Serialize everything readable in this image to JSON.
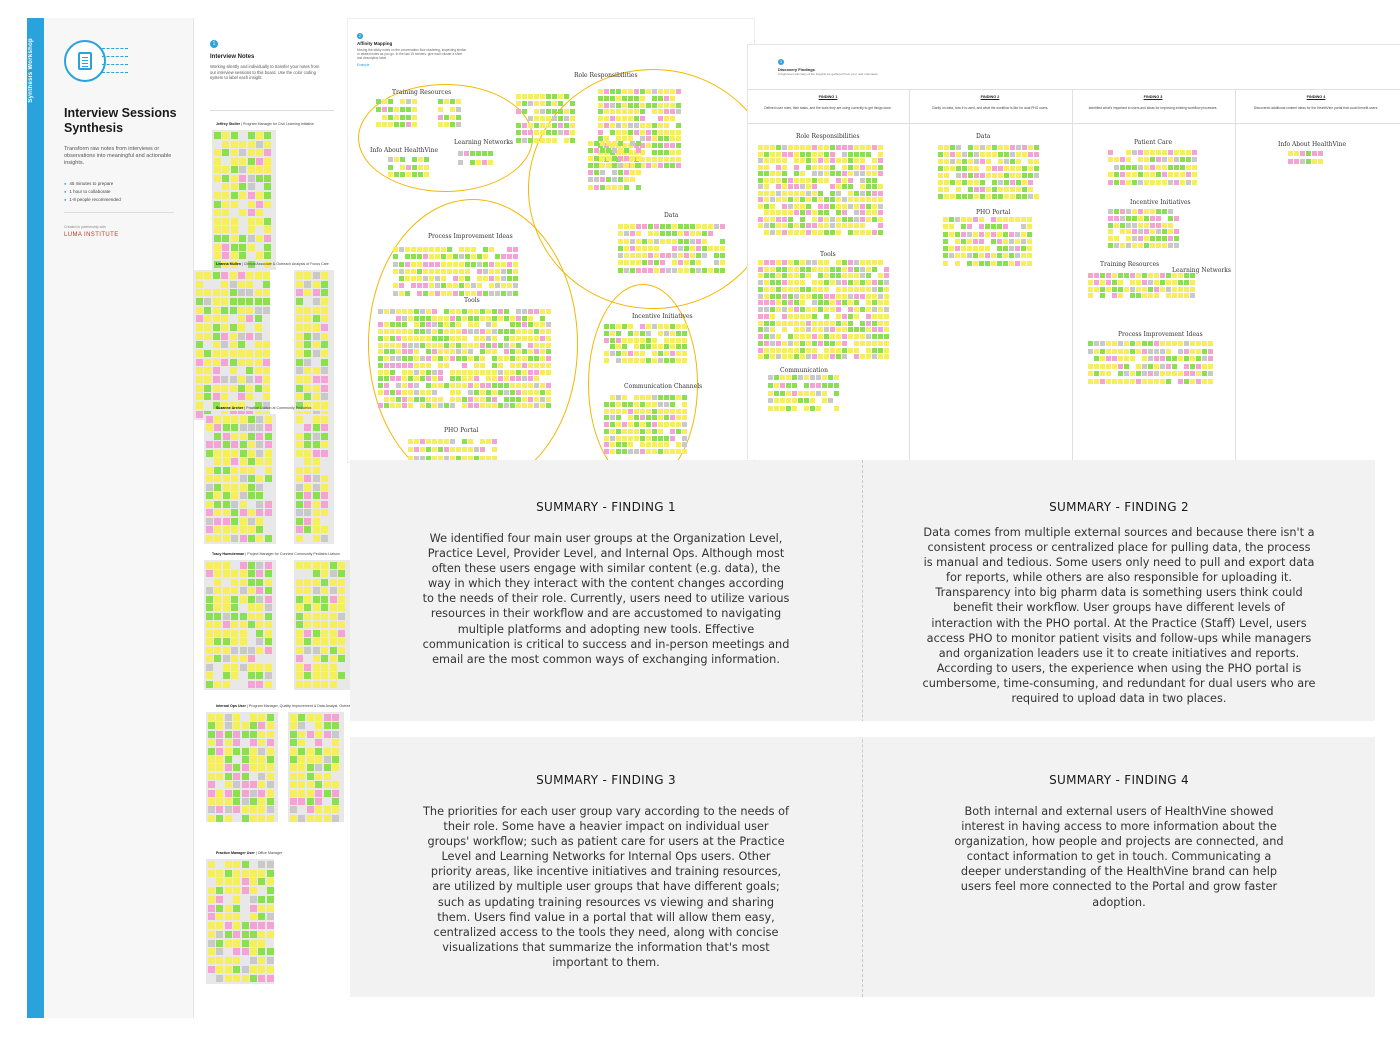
{
  "template": {
    "side_tab": "Synthesis Workshop",
    "title": "Interview Sessions Synthesis",
    "description": "Transform raw notes from interviews or observations into meaningful and actionable insights.",
    "meta": [
      "45 minutes to prepare",
      "1 hour to collaborate",
      "1-8 people recommended"
    ],
    "created_by": "Created in partnership with",
    "brand": "LUMA INSTITUTE"
  },
  "interview_notes": {
    "step": "1",
    "title": "Interview Notes",
    "description": "Working silently and individually to transfer your notes from our interview sessions to this board. Use the color coding system to label each insight.",
    "users": [
      {
        "name": "Jeffrey Stoller",
        "role": "Program Manager for Civil Learning Initiative"
      },
      {
        "name": "Leanna Mullen",
        "role": "Clinical Associate & Outreach Analysis of Focus Care"
      },
      {
        "name": "Suzanne Archer",
        "role": "Practice Liaison at Community Pediatrics"
      },
      {
        "name": "Tracy Huenderman",
        "role": "Project Manager for Connect Community Pediatric Liaison"
      },
      {
        "name": "Internal Ops User",
        "role": "Program Manager, Quality Improvement & Data Analyst, Outreach"
      },
      {
        "name": "Practice Manager User",
        "role": "Office Manager"
      }
    ]
  },
  "affinity": {
    "step": "2",
    "title": "Affinity Mapping",
    "description": "Moving the sticky notes on the conversation flow clustering, inspecting similar or related notes as you go. In the last 15 minutes, give each cluster a short and descriptive label.",
    "link": "Example",
    "clusters": [
      "Role Responsibilities",
      "Training Resources",
      "Info About HealthVine",
      "Learning Networks",
      "Process Improvement Ideas",
      "Data",
      "Tools",
      "Incentive Initiatives",
      "Communication Channels",
      "PHO Portal"
    ]
  },
  "discovery": {
    "step": "3",
    "title": "Discovery Findings",
    "description": "A high-level summary of the insights we gathered from your user interviews.",
    "findings": [
      {
        "head": "FINDING 1",
        "sub": "Defined user roles, their tasks, and the tools they are using currently to get things done."
      },
      {
        "head": "FINDING 2",
        "sub": "Clarity on data, how it is used, and what the workflow is like for dual PHO users."
      },
      {
        "head": "FINDING 3",
        "sub": "Identified what's important to users and ideas for improving existing workflow processes."
      },
      {
        "head": "FINDING 4",
        "sub": "Discovered additional content ideas for the HealthVine portal that could benefit users."
      }
    ],
    "col_labels": [
      [
        "Role Responsibilities",
        "Tools",
        "Communication"
      ],
      [
        "Data",
        "PHO Portal"
      ],
      [
        "Patient Care",
        "Incentive Initiatives",
        "Training Resources",
        "Learning Networks",
        "Process Improvement Ideas"
      ],
      [
        "Info About HealthVine"
      ]
    ]
  },
  "summary": [
    {
      "head": "SUMMARY - FINDING 1",
      "body": "We identified four main user groups at the Organization Level, Practice Level, Provider Level, and Internal Ops. Although most often these users engage with similar content (e.g. data), the way in which they interact with the content changes according to the needs of their role. Currently, users need to utilize various resources in their workflow and are accustomed to navigating multiple platforms and adopting new tools. Effective communication is critical to success and in-person meetings and email are the most common ways of exchanging information."
    },
    {
      "head": "SUMMARY - FINDING 2",
      "body": "Data comes from multiple external sources and because there isn't a consistent process or centralized place for pulling data, the process is manual and tedious. Some users only need to pull and export data for reports, while others are also responsible for uploading it. Transparency into big pharm data is something users think could benefit their workflow. User groups have different levels of interaction with the PHO portal. At the Practice (Staff) Level, users access PHO to monitor patient visits and follow-ups while managers and organization leaders use it to create initiatives and reports. According to users, the experience when using the PHO portal is cumbersome, time-consuming, and redundant for dual users who are required to upload data in two places."
    },
    {
      "head": "SUMMARY - FINDING 3",
      "body": "The priorities for each user group vary according to the needs of their role. Some have a heavier impact on individual user groups' workflow; such as patient care for users at the Practice Level and Learning Networks for Internal Ops users. Other priority areas, like incentive initiatives and training resources, are utilized by multiple user groups that have different goals; such as updating training resources vs viewing and sharing them. Users find value in a portal that will allow them easy, centralized access to the tools they need, along with concise visualizations that summarize the information that's most important to them."
    },
    {
      "head": "SUMMARY - FINDING 4",
      "body": "Both internal and external users of HealthVine showed interest in having access to more information about the organization, how people and projects are connected, and contact information to get in touch. Communicating a deeper understanding of the HealthVine brand can help users feel more connected to the Portal and grow faster adoption."
    }
  ],
  "colors": {
    "accent": "#2aa3dd",
    "sticky": [
      "#f7ef5a",
      "#8be04e",
      "#f5a3d4",
      "#c9c9c9"
    ],
    "ellipse": "#f2b800",
    "summary_bg": "#f2f2f2"
  }
}
